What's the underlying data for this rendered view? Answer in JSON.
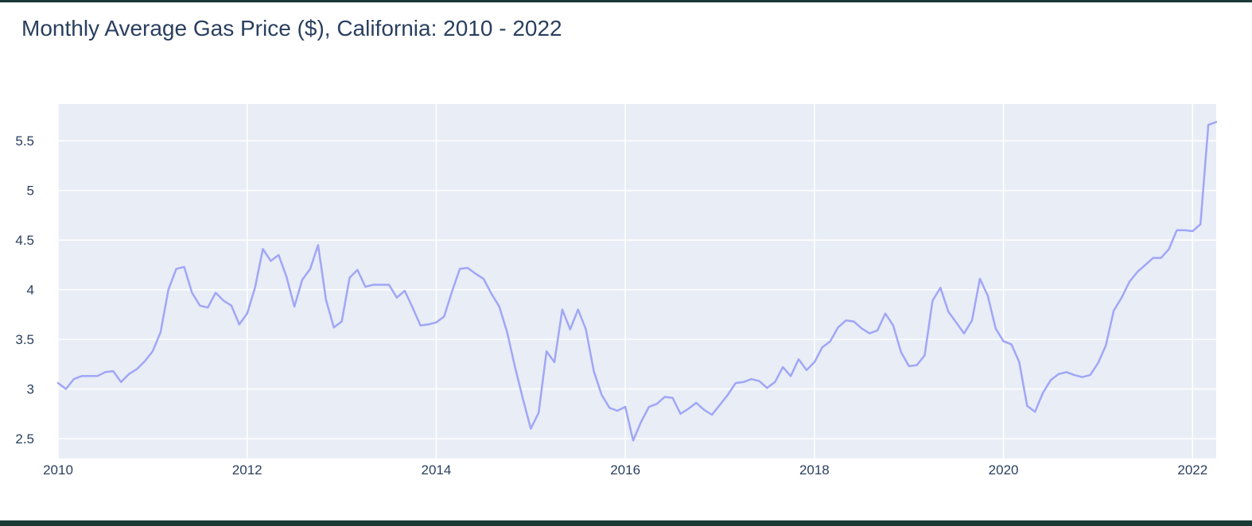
{
  "chart_data": {
    "type": "line",
    "title": "Monthly Average Gas Price ($), California: 2010 - 2022",
    "xlabel": "",
    "ylabel": "",
    "xlim": [
      2010.0,
      2022.25
    ],
    "ylim": [
      2.3,
      5.87
    ],
    "x_ticks": [
      {
        "value": 2010,
        "label": "2010"
      },
      {
        "value": 2012,
        "label": "2012"
      },
      {
        "value": 2014,
        "label": "2014"
      },
      {
        "value": 2016,
        "label": "2016"
      },
      {
        "value": 2018,
        "label": "2018"
      },
      {
        "value": 2020,
        "label": "2020"
      },
      {
        "value": 2022,
        "label": "2022"
      }
    ],
    "y_ticks": [
      {
        "value": 2.5,
        "label": "2.5"
      },
      {
        "value": 3,
        "label": "3"
      },
      {
        "value": 3.5,
        "label": "3.5"
      },
      {
        "value": 4,
        "label": "4"
      },
      {
        "value": 4.5,
        "label": "4.5"
      },
      {
        "value": 5,
        "label": "5"
      },
      {
        "value": 5.5,
        "label": "5.5"
      }
    ],
    "grid": true,
    "line_color": "#a0a6f6",
    "plot_bg": "#e8edf6",
    "grid_color": "#ffffff",
    "series": [
      {
        "start": "2010-01",
        "values": [
          3.06,
          3.0,
          3.1,
          3.13,
          3.13,
          3.13,
          3.17,
          3.18,
          3.07,
          3.15,
          3.2,
          3.28,
          3.38,
          3.57,
          4.0,
          4.21,
          4.23,
          3.97,
          3.84,
          3.82,
          3.97,
          3.89,
          3.84,
          3.65,
          3.76,
          4.02,
          4.41,
          4.29,
          4.35,
          4.13,
          3.83,
          4.1,
          4.21,
          4.45,
          3.9,
          3.62,
          3.68,
          4.12,
          4.2,
          4.03,
          4.05,
          4.05,
          4.05,
          3.92,
          3.99,
          3.82,
          3.64,
          3.65,
          3.67,
          3.73,
          3.98,
          4.21,
          4.22,
          4.16,
          4.11,
          3.96,
          3.83,
          3.57,
          3.22,
          2.9,
          2.6,
          2.76,
          3.38,
          3.27,
          3.8,
          3.6,
          3.8,
          3.6,
          3.18,
          2.94,
          2.81,
          2.78,
          2.82,
          2.48,
          2.67,
          2.82,
          2.85,
          2.92,
          2.91,
          2.75,
          2.8,
          2.86,
          2.79,
          2.74,
          2.84,
          2.94,
          3.06,
          3.07,
          3.1,
          3.08,
          3.01,
          3.07,
          3.22,
          3.13,
          3.3,
          3.19,
          3.27,
          3.42,
          3.48,
          3.62,
          3.69,
          3.68,
          3.61,
          3.56,
          3.59,
          3.76,
          3.64,
          3.37,
          3.23,
          3.24,
          3.34,
          3.89,
          4.02,
          3.78,
          3.67,
          3.56,
          3.69,
          4.11,
          3.94,
          3.61,
          3.48,
          3.45,
          3.27,
          2.83,
          2.77,
          2.96,
          3.09,
          3.15,
          3.17,
          3.14,
          3.12,
          3.14,
          3.26,
          3.44,
          3.79,
          3.92,
          4.08,
          4.18,
          4.25,
          4.32,
          4.32,
          4.41,
          4.6,
          4.6,
          4.59,
          4.66,
          5.66,
          5.69
        ]
      }
    ]
  }
}
